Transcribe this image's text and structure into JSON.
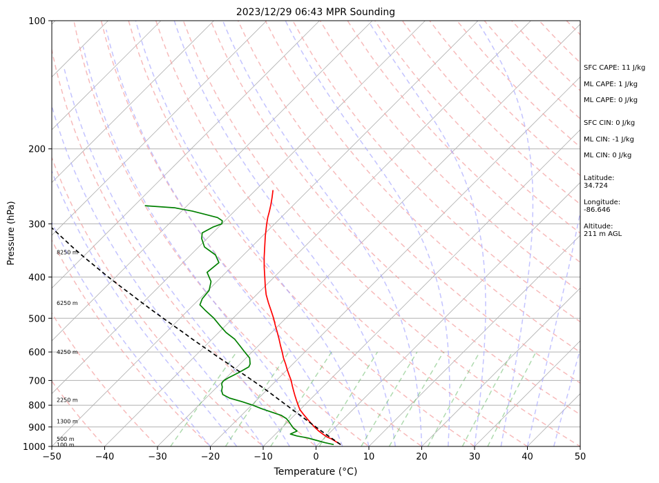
{
  "chart_data": {
    "type": "line",
    "title": "2023/12/29 06:43 MPR Sounding",
    "xlabel": "Temperature (°C)",
    "ylabel": "Pressure (hPa)",
    "xlim": [
      -50,
      50
    ],
    "ylim": [
      1000,
      100
    ],
    "y_scale": "log",
    "skew": true,
    "grid": true,
    "x_ticks": [
      "−50",
      "−40",
      "−30",
      "−20",
      "−10",
      "0",
      "10",
      "20",
      "30",
      "40",
      "50"
    ],
    "y_ticks": [
      "100",
      "200",
      "300",
      "400",
      "500",
      "600",
      "700",
      "800",
      "900",
      "1000"
    ],
    "height_labels": [
      {
        "p": 990,
        "label": "100 m"
      },
      {
        "p": 960,
        "label": "500 m"
      },
      {
        "p": 872,
        "label": "1300 m"
      },
      {
        "p": 777,
        "label": "2250 m"
      },
      {
        "p": 600,
        "label": "4250 m"
      },
      {
        "p": 460,
        "label": "6250 m"
      },
      {
        "p": 350,
        "label": "8250 m"
      }
    ],
    "series": [
      {
        "color": "#ff0000",
        "p": [
          990,
          975,
          960,
          950,
          935,
          920,
          900,
          880,
          860,
          840,
          820,
          800,
          780,
          760,
          740,
          720,
          700,
          680,
          660,
          640,
          620,
          600,
          580,
          560,
          540,
          520,
          500,
          480,
          460,
          440,
          420,
          400,
          380,
          360,
          340,
          320,
          300,
          290,
          280,
          270,
          260,
          250
        ],
        "t": [
          4.3,
          2.9,
          1.5,
          0.3,
          -1.1,
          -2.4,
          -4.0,
          -5.5,
          -7.0,
          -8.5,
          -10.0,
          -11.2,
          -12.4,
          -13.6,
          -14.8,
          -16.0,
          -17.2,
          -18.6,
          -20.0,
          -21.4,
          -22.9,
          -24.3,
          -25.8,
          -27.3,
          -28.9,
          -30.6,
          -32.3,
          -34.2,
          -36.2,
          -38.2,
          -40.0,
          -41.8,
          -43.7,
          -45.6,
          -47.5,
          -49.5,
          -51.5,
          -52.5,
          -53.4,
          -54.4,
          -55.5,
          -56.7
        ]
      },
      {
        "color": "#008000",
        "p": [
          990,
          980,
          965,
          955,
          945,
          935,
          920,
          905,
          890,
          875,
          860,
          845,
          830,
          815,
          800,
          785,
          770,
          755,
          740,
          725,
          715,
          710,
          705,
          700,
          690,
          680,
          670,
          660,
          650,
          640,
          620,
          600,
          580,
          560,
          540,
          520,
          500,
          480,
          465,
          450,
          430,
          410,
          390,
          370,
          355,
          340,
          325,
          315,
          305,
          300,
          295,
          290,
          285,
          280,
          275,
          272
        ],
        "t": [
          3.0,
          1.0,
          -1.5,
          -3.2,
          -5.6,
          -7.2,
          -6.5,
          -7.8,
          -8.8,
          -9.8,
          -10.9,
          -12.5,
          -15.0,
          -17.5,
          -19.8,
          -22.5,
          -25.5,
          -27.5,
          -28.4,
          -29.0,
          -29.6,
          -29.8,
          -29.9,
          -29.9,
          -29.6,
          -29.1,
          -28.6,
          -28.2,
          -27.8,
          -28.1,
          -29.3,
          -31.4,
          -33.5,
          -35.7,
          -38.6,
          -41.1,
          -43.6,
          -46.6,
          -48.8,
          -49.5,
          -49.8,
          -51.1,
          -53.6,
          -53.2,
          -55.3,
          -58.9,
          -61.0,
          -62.0,
          -61.0,
          -60.0,
          -60.5,
          -62.0,
          -65.0,
          -68.0,
          -72.0,
          -78.0
        ]
      },
      {
        "color": "#000000",
        "dashed": true,
        "p": [
          990,
          960,
          920,
          880,
          850,
          820,
          800,
          780,
          760,
          740,
          720,
          700,
          680,
          660,
          640,
          620,
          600,
          580,
          560,
          540,
          520,
          500,
          480,
          460,
          440,
          420,
          400,
          380,
          360,
          340,
          320,
          300,
          290,
          280,
          272
        ],
        "t": [
          4.3,
          1.7,
          -1.9,
          -5.6,
          -8.4,
          -11.4,
          -13.4,
          -15.5,
          -17.6,
          -19.8,
          -22.1,
          -24.5,
          -27.0,
          -29.6,
          -32.2,
          -35.0,
          -37.8,
          -40.7,
          -43.7,
          -46.7,
          -49.9,
          -53.2,
          -56.6,
          -60.1,
          -63.7,
          -67.5,
          -71.4,
          -75.4,
          -79.6,
          -83.9,
          -88.3,
          -93.0,
          -95.4,
          -97.9,
          -100.0
        ]
      }
    ],
    "annotations": [
      {
        "label": "SFC CAPE: 11 J/kg"
      },
      {
        "label": "ML CAPE: 1 J/kg"
      },
      {
        "label": "ML CAPE: 0 J/kg"
      },
      {
        "label": "SFC CIN: 0 J/kg"
      },
      {
        "label": "ML CIN: -1 J/kg"
      },
      {
        "label": "ML CIN: 0 J/kg"
      },
      {
        "label": "Latitude:\n34.724"
      },
      {
        "label": "Longitude:\n-86.646"
      },
      {
        "label": "Altitude:\n211 m AGL"
      }
    ]
  }
}
